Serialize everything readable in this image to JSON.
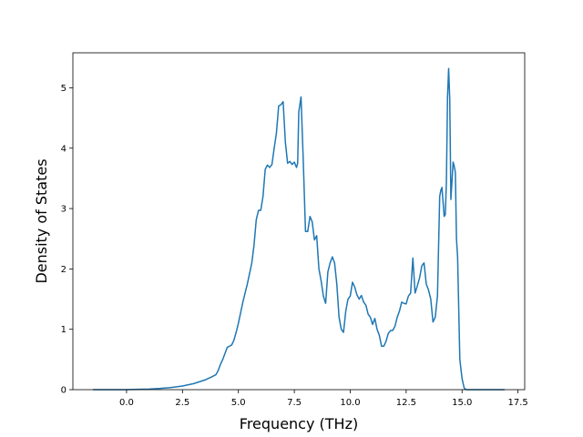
{
  "chart_data": {
    "type": "line",
    "title": "",
    "xlabel": "Frequency (THz)",
    "ylabel": "Density of States",
    "xlim": [
      -2.4,
      17.8
    ],
    "ylim": [
      0,
      5.58
    ],
    "xticks": [
      0.0,
      2.5,
      5.0,
      7.5,
      10.0,
      12.5,
      15.0,
      17.5
    ],
    "xtick_labels": [
      "0.0",
      "2.5",
      "5.0",
      "7.5",
      "10.0",
      "12.5",
      "15.0",
      "17.5"
    ],
    "yticks": [
      0,
      1,
      2,
      3,
      4,
      5
    ],
    "ytick_labels": [
      "0",
      "1",
      "2",
      "3",
      "4",
      "5"
    ],
    "grid": false,
    "legend": "none",
    "line_color": "#1f77b4",
    "series": [
      {
        "x": [
          -1.5,
          -1.0,
          -0.5,
          0.0,
          0.5,
          1.0,
          1.5,
          2.0,
          2.5,
          3.0,
          3.5,
          3.8,
          4.0,
          4.1,
          4.2,
          4.3,
          4.4,
          4.5,
          4.6,
          4.7,
          4.8,
          4.9,
          5.0,
          5.2,
          5.4,
          5.6,
          5.7,
          5.8,
          5.9,
          6.0,
          6.1,
          6.2,
          6.3,
          6.4,
          6.5,
          6.6,
          6.7,
          6.8,
          6.9,
          7.0,
          7.1,
          7.2,
          7.3,
          7.4,
          7.5,
          7.6,
          7.65,
          7.7,
          7.8,
          7.9,
          8.0,
          8.1,
          8.2,
          8.3,
          8.4,
          8.5,
          8.6,
          8.7,
          8.8,
          8.9,
          9.0,
          9.1,
          9.2,
          9.3,
          9.4,
          9.5,
          9.6,
          9.7,
          9.8,
          9.9,
          10.0,
          10.1,
          10.2,
          10.3,
          10.4,
          10.5,
          10.6,
          10.7,
          10.8,
          10.9,
          11.0,
          11.1,
          11.2,
          11.3,
          11.4,
          11.5,
          11.6,
          11.7,
          11.8,
          11.9,
          12.0,
          12.1,
          12.2,
          12.3,
          12.4,
          12.5,
          12.6,
          12.7,
          12.8,
          12.9,
          13.0,
          13.1,
          13.2,
          13.3,
          13.4,
          13.5,
          13.6,
          13.7,
          13.8,
          13.9,
          14.0,
          14.05,
          14.1,
          14.2,
          14.25,
          14.3,
          14.35,
          14.4,
          14.45,
          14.5,
          14.6,
          14.65,
          14.7,
          14.75,
          14.8,
          14.9,
          15.0,
          15.1,
          15.2,
          15.3,
          15.4,
          15.5,
          16.0,
          16.5,
          16.9
        ],
        "y": [
          0,
          0,
          0,
          0,
          0.005,
          0.01,
          0.02,
          0.035,
          0.06,
          0.1,
          0.16,
          0.21,
          0.25,
          0.32,
          0.42,
          0.5,
          0.6,
          0.7,
          0.72,
          0.74,
          0.82,
          0.95,
          1.1,
          1.45,
          1.75,
          2.1,
          2.4,
          2.82,
          2.97,
          2.97,
          3.2,
          3.65,
          3.72,
          3.68,
          3.73,
          4.0,
          4.25,
          4.7,
          4.72,
          4.77,
          4.1,
          3.75,
          3.78,
          3.73,
          3.77,
          3.68,
          3.75,
          4.6,
          4.85,
          3.8,
          2.62,
          2.62,
          2.87,
          2.78,
          2.48,
          2.55,
          2.0,
          1.8,
          1.55,
          1.43,
          1.95,
          2.1,
          2.2,
          2.1,
          1.75,
          1.2,
          1.0,
          0.95,
          1.3,
          1.5,
          1.55,
          1.78,
          1.7,
          1.57,
          1.5,
          1.56,
          1.45,
          1.4,
          1.25,
          1.2,
          1.08,
          1.18,
          1.0,
          0.9,
          0.72,
          0.72,
          0.8,
          0.93,
          0.98,
          0.98,
          1.05,
          1.2,
          1.3,
          1.45,
          1.43,
          1.42,
          1.55,
          1.6,
          2.18,
          1.6,
          1.72,
          1.85,
          2.05,
          2.1,
          1.75,
          1.65,
          1.5,
          1.12,
          1.2,
          1.55,
          3.2,
          3.3,
          3.35,
          2.87,
          2.9,
          3.45,
          4.85,
          5.32,
          4.8,
          3.15,
          3.77,
          3.7,
          3.6,
          2.5,
          2.2,
          0.5,
          0.18,
          0.02,
          0,
          0,
          0,
          0,
          0,
          0,
          0
        ]
      }
    ]
  }
}
